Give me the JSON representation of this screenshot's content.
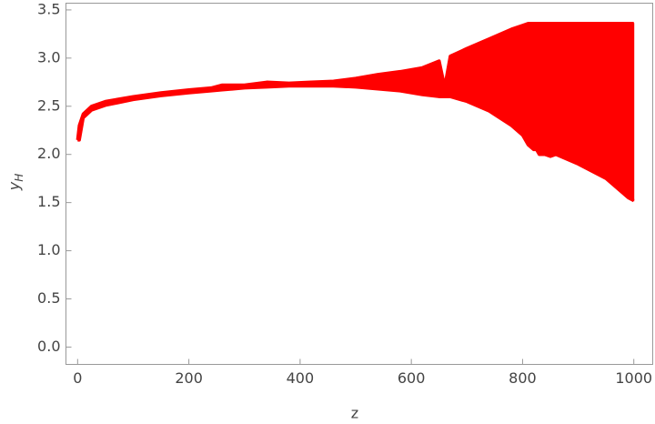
{
  "chart_data": {
    "type": "band",
    "x_label": "z",
    "y_label": "y",
    "y_label_sub": "H",
    "xlim": [
      -21,
      1034
    ],
    "ylim": [
      -0.18,
      3.57
    ],
    "xticks": [
      0,
      200,
      400,
      600,
      800,
      1000
    ],
    "yticks": [
      {
        "value": 0,
        "label": "0.0"
      },
      0.5,
      {
        "value": 1,
        "label": "1.0"
      },
      1.5,
      {
        "value": 2,
        "label": "2.0"
      },
      2.5,
      {
        "value": 3,
        "label": "3.0"
      },
      3.5
    ],
    "series": [
      {
        "color": "#ff0000",
        "x": [
          0,
          3,
          10,
          25,
          50,
          100,
          150,
          200,
          240,
          260,
          300,
          340,
          380,
          420,
          460,
          500,
          540,
          580,
          620,
          650,
          660,
          670,
          700,
          740,
          780,
          800,
          810,
          820,
          825,
          830,
          840,
          850,
          860,
          900,
          950,
          990,
          1000
        ],
        "upper": [
          2.15,
          2.3,
          2.42,
          2.5,
          2.55,
          2.6,
          2.64,
          2.67,
          2.69,
          2.72,
          2.72,
          2.75,
          2.74,
          2.75,
          2.76,
          2.79,
          2.83,
          2.86,
          2.9,
          2.97,
          2.7,
          3.02,
          3.1,
          3.2,
          3.3,
          3.34,
          3.36,
          3.36,
          3.36,
          3.36,
          3.36,
          3.36,
          3.36,
          3.36,
          3.36,
          3.36,
          3.36
        ],
        "lower": [
          2.15,
          2.15,
          2.38,
          2.46,
          2.51,
          2.57,
          2.61,
          2.64,
          2.66,
          2.67,
          2.69,
          2.7,
          2.71,
          2.71,
          2.71,
          2.7,
          2.68,
          2.66,
          2.62,
          2.6,
          2.6,
          2.6,
          2.55,
          2.45,
          2.3,
          2.2,
          2.1,
          2.05,
          2.05,
          2.0,
          2.0,
          1.98,
          2.0,
          1.9,
          1.75,
          1.55,
          1.52
        ]
      }
    ]
  }
}
